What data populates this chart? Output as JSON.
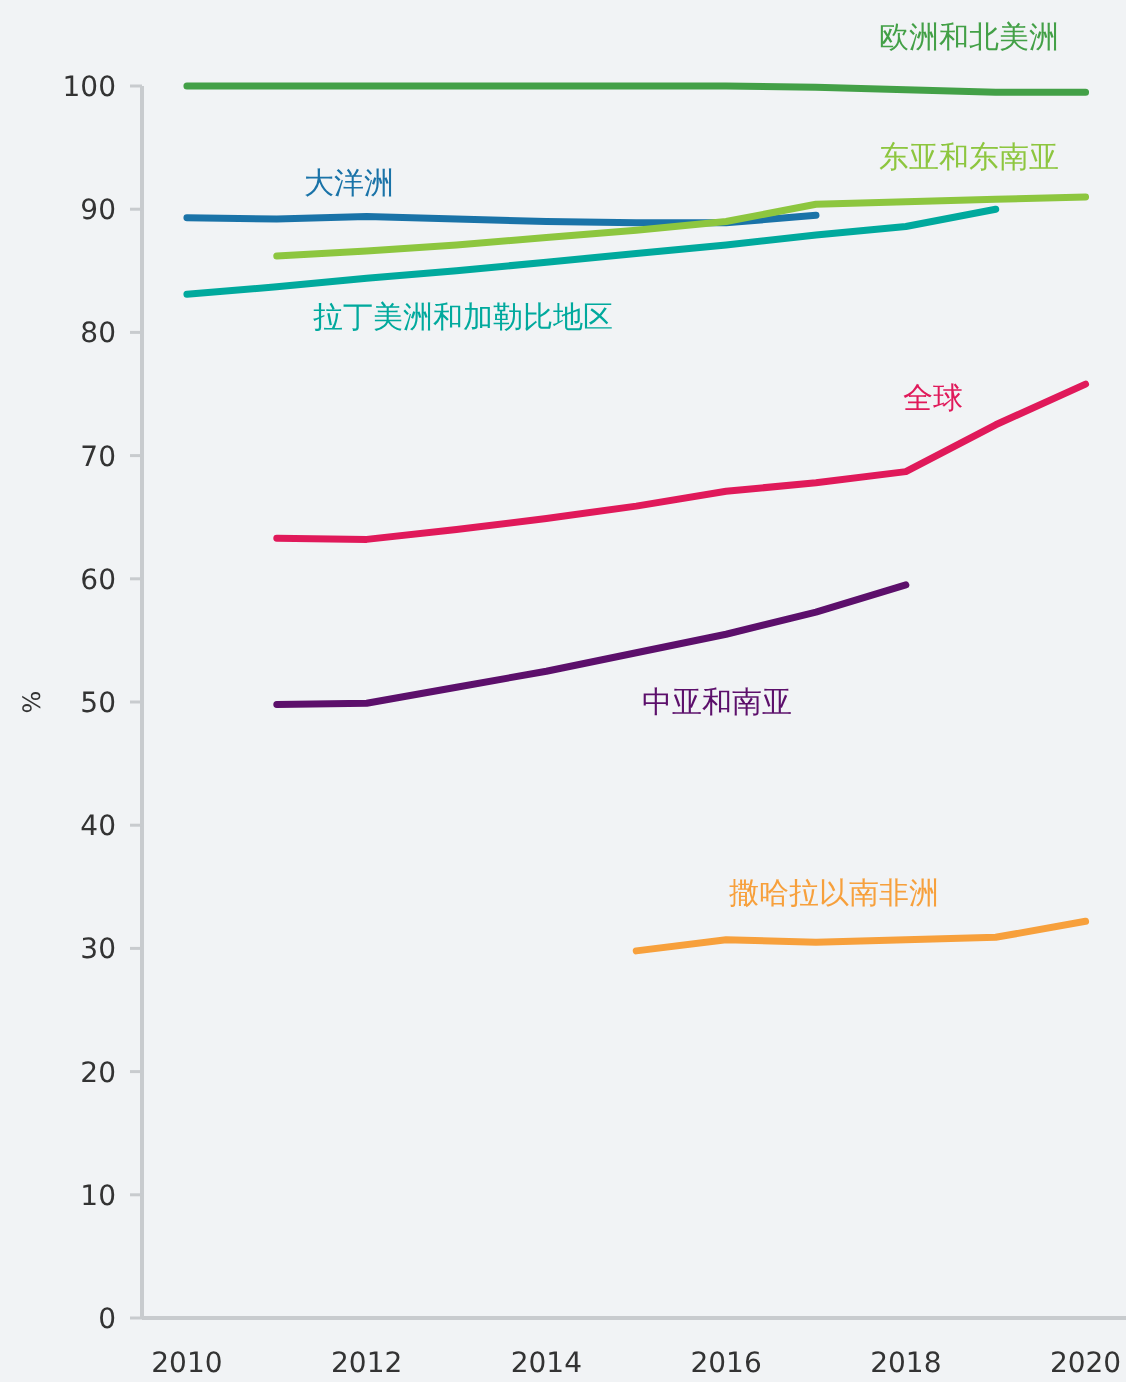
{
  "chart_data": {
    "type": "line",
    "ylabel": "%",
    "xlim": [
      2009.5,
      2020.45
    ],
    "ylim": [
      0,
      100
    ],
    "xticks": [
      2010,
      2012,
      2014,
      2016,
      2018,
      2020
    ],
    "yticks": [
      0,
      10,
      20,
      30,
      40,
      50,
      60,
      70,
      80,
      90,
      100
    ],
    "line_style": "solid",
    "series": [
      {
        "name": "欧洲和北美洲",
        "color": "#43a047",
        "x": [
          2010,
          2011,
          2012,
          2013,
          2014,
          2015,
          2016,
          2017,
          2018,
          2019,
          2020
        ],
        "values": [
          100,
          100,
          100,
          100,
          100,
          100,
          100,
          99.9,
          99.7,
          99.5,
          99.5
        ]
      },
      {
        "name": "大洋洲",
        "color": "#1a73a8",
        "x": [
          2010,
          2011,
          2012,
          2013,
          2014,
          2015,
          2016,
          2017
        ],
        "values": [
          89.3,
          89.2,
          89.4,
          89.2,
          89.0,
          88.9,
          88.9,
          89.5
        ]
      },
      {
        "name": "东亚和东南亚",
        "color": "#8dc63f",
        "x": [
          2011,
          2012,
          2013,
          2014,
          2015,
          2016,
          2017,
          2018,
          2019,
          2020
        ],
        "values": [
          86.2,
          86.6,
          87.1,
          87.7,
          88.3,
          89.0,
          90.4,
          90.6,
          90.8,
          91.0
        ]
      },
      {
        "name": "拉丁美洲和加勒比地区",
        "color": "#00a99d",
        "x": [
          2010,
          2011,
          2012,
          2013,
          2014,
          2015,
          2016,
          2017,
          2018,
          2019
        ],
        "values": [
          83.1,
          83.7,
          84.4,
          85.0,
          85.7,
          86.4,
          87.1,
          87.9,
          88.6,
          90.0
        ]
      },
      {
        "name": "全球",
        "color": "#e0195a",
        "x": [
          2011,
          2012,
          2013,
          2014,
          2015,
          2016,
          2017,
          2018,
          2019,
          2020
        ],
        "values": [
          63.3,
          63.2,
          64.0,
          64.9,
          65.9,
          67.1,
          67.8,
          68.7,
          72.5,
          75.8
        ]
      },
      {
        "name": "中亚和南亚",
        "color": "#5c0f6b",
        "x": [
          2011,
          2012,
          2013,
          2014,
          2015,
          2016,
          2017,
          2018
        ],
        "values": [
          49.8,
          49.9,
          51.2,
          52.5,
          54.0,
          55.5,
          57.3,
          59.5
        ]
      },
      {
        "name": "撒哈拉以南非洲",
        "color": "#f7a03c",
        "x": [
          2015,
          2016,
          2017,
          2018,
          2019,
          2020
        ],
        "values": [
          29.8,
          30.7,
          30.5,
          30.7,
          30.9,
          32.2
        ]
      }
    ]
  }
}
